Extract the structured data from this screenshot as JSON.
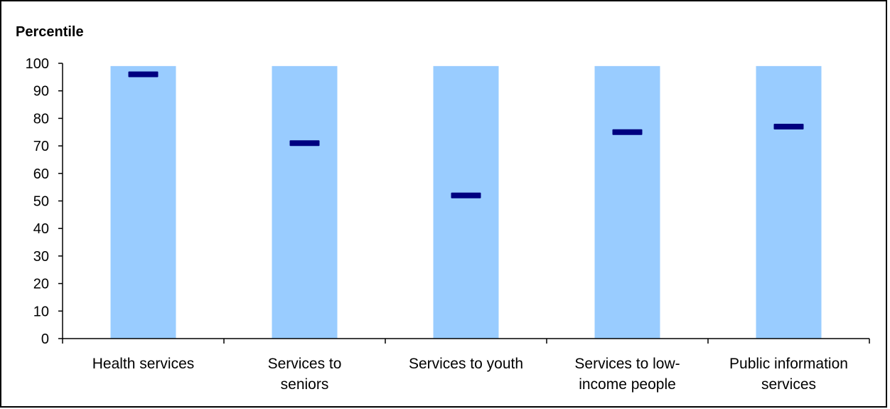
{
  "chart_data": {
    "type": "bar",
    "title": "",
    "ylabel": "Percentile",
    "xlabel": "",
    "categories": [
      [
        "Health services"
      ],
      [
        "Services to",
        "seniors"
      ],
      [
        "Services to youth"
      ],
      [
        "Services to low-",
        "income people"
      ],
      [
        "Public information",
        "services"
      ]
    ],
    "series": [
      {
        "values": [
          99,
          99,
          99,
          99,
          99
        ]
      },
      {
        "values": [
          96,
          71,
          52,
          75,
          77
        ]
      }
    ],
    "ylim": [
      0,
      100
    ],
    "yticks": [
      0,
      10,
      20,
      30,
      40,
      50,
      60,
      70,
      80,
      90,
      100
    ],
    "grid": false,
    "legend": "none",
    "colors": {
      "bar": "#99CCFF",
      "marker": "#000080",
      "axis": "#000000"
    }
  }
}
